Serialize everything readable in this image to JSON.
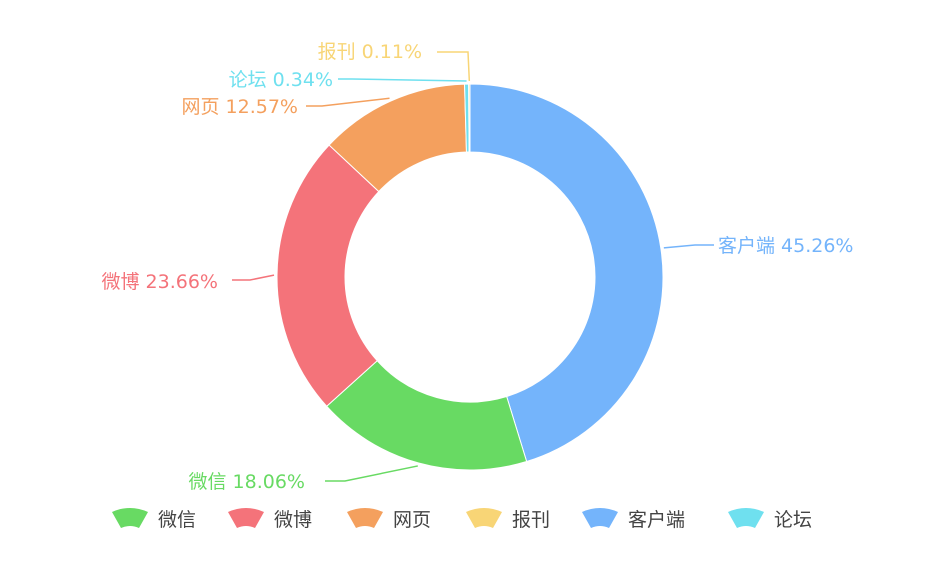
{
  "chart_data": {
    "type": "pie",
    "variant": "donut",
    "slices": [
      {
        "name": "客户端",
        "value": 45.26,
        "label": "客户端 45.26%",
        "color": "#74b4fb"
      },
      {
        "name": "微信",
        "value": 18.06,
        "label": "微信 18.06%",
        "color": "#68da63"
      },
      {
        "name": "微博",
        "value": 23.66,
        "label": "微博 23.66%",
        "color": "#f4737a"
      },
      {
        "name": "网页",
        "value": 12.57,
        "label": "网页 12.57%",
        "color": "#f4a05e"
      },
      {
        "name": "论坛",
        "value": 0.34,
        "label": "论坛 0.34%",
        "color": "#6fe0ef"
      },
      {
        "name": "报刊",
        "value": 0.11,
        "label": "报刊 0.11%",
        "color": "#f8d576"
      }
    ],
    "legend": {
      "placement": "bottom",
      "items": [
        {
          "name": "微信",
          "color": "#68da63"
        },
        {
          "name": "微博",
          "color": "#f4737a"
        },
        {
          "name": "网页",
          "color": "#f4a05e"
        },
        {
          "name": "报刊",
          "color": "#f8d576"
        },
        {
          "name": "客户端",
          "color": "#74b4fb"
        },
        {
          "name": "论坛",
          "color": "#6fe0ef"
        }
      ]
    }
  }
}
